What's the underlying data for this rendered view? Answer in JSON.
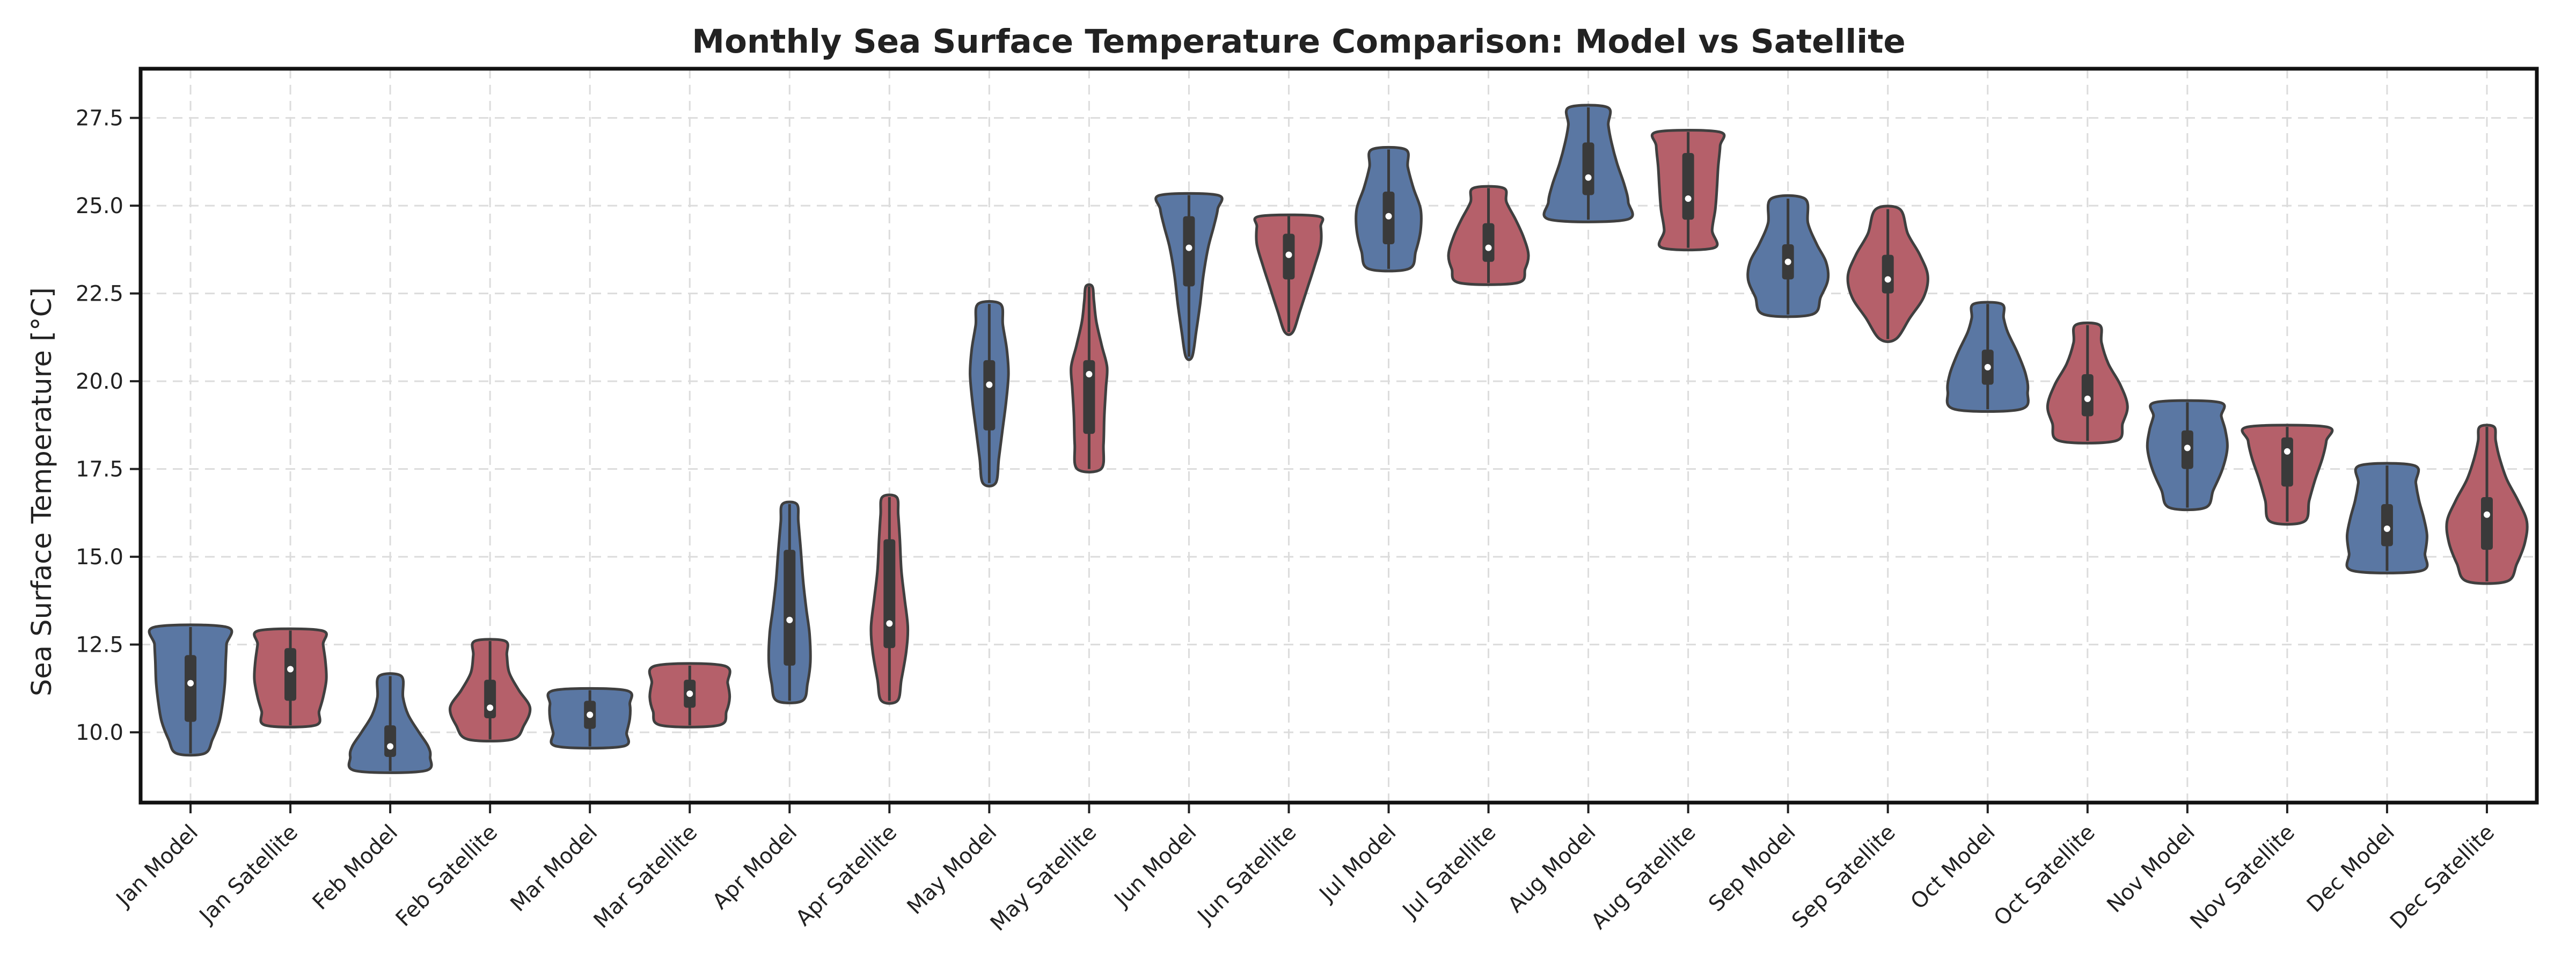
{
  "chart_data": {
    "type": "violin",
    "title": "Monthly Sea Surface Temperature Comparison: Model vs Satellite",
    "xlabel": "",
    "ylabel": "Sea Surface Temperature [°C]",
    "ylim": [
      8.0,
      28.9
    ],
    "yticks": [
      10.0,
      12.5,
      15.0,
      17.5,
      20.0,
      22.5,
      25.0,
      27.5
    ],
    "ytick_labels": [
      "10.0",
      "12.5",
      "15.0",
      "17.5",
      "20.0",
      "22.5",
      "25.0",
      "27.5"
    ],
    "grid": true,
    "colors": {
      "Model": "#5a77a3",
      "Satellite": "#b5606a"
    },
    "categories": [
      "Jan Model",
      "Jan Satellite",
      "Feb Model",
      "Feb Satellite",
      "Mar Model",
      "Mar Satellite",
      "Apr Model",
      "Apr Satellite",
      "May Model",
      "May Satellite",
      "Jun Model",
      "Jun Satellite",
      "Jul Model",
      "Jul Satellite",
      "Aug Model",
      "Aug Satellite",
      "Sep Model",
      "Sep Satellite",
      "Oct Model",
      "Oct Satellite",
      "Nov Model",
      "Nov Satellite",
      "Dec Model",
      "Dec Satellite"
    ],
    "violins": [
      {
        "label": "Jan Model",
        "source": "Model",
        "min": 9.4,
        "q1": 10.3,
        "median": 11.4,
        "q3": 12.2,
        "max": 13.0,
        "lo_whisker": 9.4,
        "hi_whisker": 13.0,
        "profile": [
          [
            9.4,
            0.35
          ],
          [
            9.8,
            0.55
          ],
          [
            10.3,
            0.72
          ],
          [
            10.8,
            0.8
          ],
          [
            11.4,
            0.86
          ],
          [
            12.0,
            0.88
          ],
          [
            12.5,
            0.9
          ],
          [
            13.0,
            0.9
          ]
        ]
      },
      {
        "label": "Jan Satellite",
        "source": "Satellite",
        "min": 10.2,
        "q1": 10.9,
        "median": 11.8,
        "q3": 12.4,
        "max": 12.9,
        "lo_whisker": 10.2,
        "hi_whisker": 12.9,
        "profile": [
          [
            10.2,
            0.62
          ],
          [
            10.6,
            0.72
          ],
          [
            11.0,
            0.82
          ],
          [
            11.5,
            0.9
          ],
          [
            12.0,
            0.88
          ],
          [
            12.5,
            0.82
          ],
          [
            12.9,
            0.78
          ]
        ]
      },
      {
        "label": "Feb Model",
        "source": "Model",
        "min": 8.9,
        "q1": 9.3,
        "median": 9.6,
        "q3": 10.2,
        "max": 11.6,
        "lo_whisker": 8.9,
        "hi_whisker": 11.6,
        "profile": [
          [
            8.9,
            0.85
          ],
          [
            9.3,
            1.0
          ],
          [
            9.6,
            0.95
          ],
          [
            10.0,
            0.72
          ],
          [
            10.5,
            0.45
          ],
          [
            11.0,
            0.32
          ],
          [
            11.6,
            0.28
          ]
        ]
      },
      {
        "label": "Feb Satellite",
        "source": "Satellite",
        "min": 9.8,
        "q1": 10.4,
        "median": 10.7,
        "q3": 11.5,
        "max": 12.6,
        "lo_whisker": 9.8,
        "hi_whisker": 12.6,
        "profile": [
          [
            9.8,
            0.55
          ],
          [
            10.2,
            0.85
          ],
          [
            10.7,
            1.0
          ],
          [
            11.2,
            0.72
          ],
          [
            11.7,
            0.48
          ],
          [
            12.2,
            0.42
          ],
          [
            12.6,
            0.38
          ]
        ]
      },
      {
        "label": "Mar Model",
        "source": "Model",
        "min": 9.6,
        "q1": 10.1,
        "median": 10.5,
        "q3": 10.9,
        "max": 11.2,
        "lo_whisker": 9.6,
        "hi_whisker": 11.2,
        "profile": [
          [
            9.6,
            0.82
          ],
          [
            10.0,
            0.92
          ],
          [
            10.4,
            1.0
          ],
          [
            10.8,
            1.0
          ],
          [
            11.2,
            0.88
          ]
        ]
      },
      {
        "label": "Mar Satellite",
        "source": "Satellite",
        "min": 10.2,
        "q1": 10.7,
        "median": 11.1,
        "q3": 11.5,
        "max": 11.9,
        "lo_whisker": 10.2,
        "hi_whisker": 11.9,
        "profile": [
          [
            10.2,
            0.72
          ],
          [
            10.6,
            0.92
          ],
          [
            11.0,
            1.0
          ],
          [
            11.4,
            0.95
          ],
          [
            11.9,
            0.85
          ]
        ]
      },
      {
        "label": "Apr Model",
        "source": "Model",
        "min": 10.9,
        "q1": 11.9,
        "median": 13.2,
        "q3": 15.2,
        "max": 16.5,
        "lo_whisker": 10.9,
        "hi_whisker": 16.5,
        "profile": [
          [
            10.9,
            0.32
          ],
          [
            11.4,
            0.45
          ],
          [
            12.0,
            0.52
          ],
          [
            12.8,
            0.5
          ],
          [
            13.5,
            0.42
          ],
          [
            14.3,
            0.34
          ],
          [
            15.2,
            0.28
          ],
          [
            16.0,
            0.22
          ],
          [
            16.5,
            0.18
          ]
        ]
      },
      {
        "label": "Apr Satellite",
        "source": "Satellite",
        "min": 10.9,
        "q1": 12.4,
        "median": 13.1,
        "q3": 15.5,
        "max": 16.7,
        "lo_whisker": 10.9,
        "hi_whisker": 16.7,
        "profile": [
          [
            10.9,
            0.2
          ],
          [
            11.5,
            0.3
          ],
          [
            12.3,
            0.42
          ],
          [
            13.0,
            0.46
          ],
          [
            13.8,
            0.38
          ],
          [
            14.6,
            0.3
          ],
          [
            15.5,
            0.26
          ],
          [
            16.2,
            0.22
          ],
          [
            16.7,
            0.18
          ]
        ]
      },
      {
        "label": "May Model",
        "source": "Model",
        "min": 17.1,
        "q1": 18.6,
        "median": 19.9,
        "q3": 20.6,
        "max": 22.2,
        "lo_whisker": 17.1,
        "hi_whisker": 22.2,
        "profile": [
          [
            17.1,
            0.16
          ],
          [
            17.8,
            0.24
          ],
          [
            18.6,
            0.33
          ],
          [
            19.4,
            0.42
          ],
          [
            20.2,
            0.48
          ],
          [
            20.9,
            0.44
          ],
          [
            21.6,
            0.34
          ],
          [
            22.2,
            0.28
          ]
        ]
      },
      {
        "label": "May Satellite",
        "source": "Satellite",
        "min": 17.5,
        "q1": 18.5,
        "median": 20.2,
        "q3": 20.6,
        "max": 22.7,
        "lo_whisker": 17.5,
        "hi_whisker": 22.7,
        "profile": [
          [
            17.5,
            0.3
          ],
          [
            18.2,
            0.36
          ],
          [
            19.0,
            0.38
          ],
          [
            19.8,
            0.42
          ],
          [
            20.4,
            0.45
          ],
          [
            21.0,
            0.32
          ],
          [
            21.7,
            0.18
          ],
          [
            22.3,
            0.12
          ],
          [
            22.7,
            0.08
          ]
        ]
      },
      {
        "label": "Jun Model",
        "source": "Model",
        "min": 20.7,
        "q1": 22.7,
        "median": 23.8,
        "q3": 24.7,
        "max": 25.3,
        "lo_whisker": 20.7,
        "hi_whisker": 25.3,
        "profile": [
          [
            20.7,
            0.08
          ],
          [
            21.4,
            0.18
          ],
          [
            22.2,
            0.28
          ],
          [
            23.0,
            0.36
          ],
          [
            23.8,
            0.48
          ],
          [
            24.4,
            0.62
          ],
          [
            24.9,
            0.72
          ],
          [
            25.3,
            0.72
          ]
        ]
      },
      {
        "label": "Jun Satellite",
        "source": "Satellite",
        "min": 21.4,
        "q1": 22.9,
        "median": 23.6,
        "q3": 24.2,
        "max": 24.7,
        "lo_whisker": 21.4,
        "hi_whisker": 24.7,
        "profile": [
          [
            21.4,
            0.1
          ],
          [
            22.0,
            0.28
          ],
          [
            22.7,
            0.48
          ],
          [
            23.3,
            0.65
          ],
          [
            23.9,
            0.8
          ],
          [
            24.4,
            0.8
          ],
          [
            24.7,
            0.72
          ]
        ]
      },
      {
        "label": "Jul Model",
        "source": "Model",
        "min": 23.2,
        "q1": 23.9,
        "median": 24.7,
        "q3": 25.4,
        "max": 26.6,
        "lo_whisker": 23.2,
        "hi_whisker": 26.6,
        "profile": [
          [
            23.2,
            0.5
          ],
          [
            23.7,
            0.68
          ],
          [
            24.3,
            0.8
          ],
          [
            24.9,
            0.8
          ],
          [
            25.5,
            0.62
          ],
          [
            26.1,
            0.48
          ],
          [
            26.6,
            0.42
          ]
        ]
      },
      {
        "label": "Jul Satellite",
        "source": "Satellite",
        "min": 22.8,
        "q1": 23.4,
        "median": 23.8,
        "q3": 24.5,
        "max": 25.5,
        "lo_whisker": 22.8,
        "hi_whisker": 25.5,
        "profile": [
          [
            22.8,
            0.72
          ],
          [
            23.2,
            0.92
          ],
          [
            23.6,
            1.0
          ],
          [
            24.1,
            0.88
          ],
          [
            24.6,
            0.68
          ],
          [
            25.1,
            0.45
          ],
          [
            25.5,
            0.38
          ]
        ]
      },
      {
        "label": "Aug Model",
        "source": "Model",
        "min": 24.6,
        "q1": 25.3,
        "median": 25.8,
        "q3": 26.8,
        "max": 27.8,
        "lo_whisker": 24.6,
        "hi_whisker": 27.8,
        "profile": [
          [
            24.6,
            0.95
          ],
          [
            25.1,
            1.0
          ],
          [
            25.6,
            0.9
          ],
          [
            26.2,
            0.72
          ],
          [
            26.8,
            0.58
          ],
          [
            27.3,
            0.5
          ],
          [
            27.8,
            0.48
          ]
        ]
      },
      {
        "label": "Aug Satellite",
        "source": "Satellite",
        "min": 23.8,
        "q1": 24.6,
        "median": 25.2,
        "q3": 26.5,
        "max": 27.1,
        "lo_whisker": 23.8,
        "hi_whisker": 27.1,
        "profile": [
          [
            23.8,
            0.65
          ],
          [
            24.3,
            0.6
          ],
          [
            24.9,
            0.68
          ],
          [
            25.5,
            0.72
          ],
          [
            26.1,
            0.75
          ],
          [
            26.7,
            0.8
          ],
          [
            27.1,
            0.78
          ]
        ]
      },
      {
        "label": "Sep Model",
        "source": "Model",
        "min": 21.9,
        "q1": 22.9,
        "median": 23.4,
        "q3": 23.9,
        "max": 25.2,
        "lo_whisker": 21.9,
        "hi_whisker": 25.2,
        "profile": [
          [
            21.9,
            0.6
          ],
          [
            22.4,
            0.82
          ],
          [
            22.9,
            1.0
          ],
          [
            23.4,
            0.95
          ],
          [
            23.9,
            0.72
          ],
          [
            24.5,
            0.5
          ],
          [
            25.2,
            0.42
          ]
        ]
      },
      {
        "label": "Sep Satellite",
        "source": "Satellite",
        "min": 21.2,
        "q1": 22.5,
        "median": 22.9,
        "q3": 23.6,
        "max": 24.9,
        "lo_whisker": 21.2,
        "hi_whisker": 24.9,
        "profile": [
          [
            21.2,
            0.2
          ],
          [
            21.8,
            0.55
          ],
          [
            22.4,
            0.9
          ],
          [
            23.0,
            1.0
          ],
          [
            23.6,
            0.8
          ],
          [
            24.2,
            0.5
          ],
          [
            24.9,
            0.3
          ]
        ]
      },
      {
        "label": "Oct Model",
        "source": "Model",
        "min": 19.2,
        "q1": 19.9,
        "median": 20.4,
        "q3": 20.9,
        "max": 22.2,
        "lo_whisker": 19.2,
        "hi_whisker": 22.2,
        "profile": [
          [
            19.2,
            0.82
          ],
          [
            19.7,
            1.0
          ],
          [
            20.2,
            0.95
          ],
          [
            20.8,
            0.75
          ],
          [
            21.4,
            0.5
          ],
          [
            21.8,
            0.4
          ],
          [
            22.2,
            0.35
          ]
        ]
      },
      {
        "label": "Oct Satellite",
        "source": "Satellite",
        "min": 18.3,
        "q1": 19.0,
        "median": 19.5,
        "q3": 20.2,
        "max": 21.6,
        "lo_whisker": 18.3,
        "hi_whisker": 21.6,
        "profile": [
          [
            18.3,
            0.7
          ],
          [
            18.8,
            0.88
          ],
          [
            19.3,
            1.0
          ],
          [
            19.9,
            0.82
          ],
          [
            20.5,
            0.52
          ],
          [
            21.1,
            0.35
          ],
          [
            21.6,
            0.3
          ]
        ]
      },
      {
        "label": "Nov Model",
        "source": "Model",
        "min": 16.4,
        "q1": 17.5,
        "median": 18.1,
        "q3": 18.6,
        "max": 19.4,
        "lo_whisker": 16.4,
        "hi_whisker": 19.4,
        "profile": [
          [
            16.4,
            0.45
          ],
          [
            16.9,
            0.65
          ],
          [
            17.5,
            0.88
          ],
          [
            18.1,
            1.0
          ],
          [
            18.6,
            0.95
          ],
          [
            19.0,
            0.85
          ],
          [
            19.4,
            0.8
          ]
        ]
      },
      {
        "label": "Nov Satellite",
        "source": "Satellite",
        "min": 16.0,
        "q1": 17.0,
        "median": 18.0,
        "q3": 18.4,
        "max": 18.7,
        "lo_whisker": 16.0,
        "hi_whisker": 18.7,
        "profile": [
          [
            16.0,
            0.42
          ],
          [
            16.6,
            0.55
          ],
          [
            17.2,
            0.7
          ],
          [
            17.8,
            0.88
          ],
          [
            18.3,
            0.98
          ],
          [
            18.7,
            0.98
          ]
        ]
      },
      {
        "label": "Dec Model",
        "source": "Model",
        "min": 14.6,
        "q1": 15.3,
        "median": 15.8,
        "q3": 16.5,
        "max": 17.6,
        "lo_whisker": 14.6,
        "hi_whisker": 17.6,
        "profile": [
          [
            14.6,
            0.85
          ],
          [
            15.1,
            0.95
          ],
          [
            15.6,
            1.0
          ],
          [
            16.1,
            0.92
          ],
          [
            16.6,
            0.8
          ],
          [
            17.1,
            0.72
          ],
          [
            17.6,
            0.68
          ]
        ]
      },
      {
        "label": "Dec Satellite",
        "source": "Satellite",
        "min": 14.3,
        "q1": 15.2,
        "median": 16.2,
        "q3": 16.7,
        "max": 18.7,
        "lo_whisker": 14.3,
        "hi_whisker": 18.7,
        "profile": [
          [
            14.3,
            0.5
          ],
          [
            14.8,
            0.75
          ],
          [
            15.4,
            0.95
          ],
          [
            16.0,
            1.0
          ],
          [
            16.6,
            0.78
          ],
          [
            17.2,
            0.5
          ],
          [
            17.8,
            0.32
          ],
          [
            18.3,
            0.22
          ],
          [
            18.7,
            0.18
          ]
        ]
      }
    ]
  }
}
